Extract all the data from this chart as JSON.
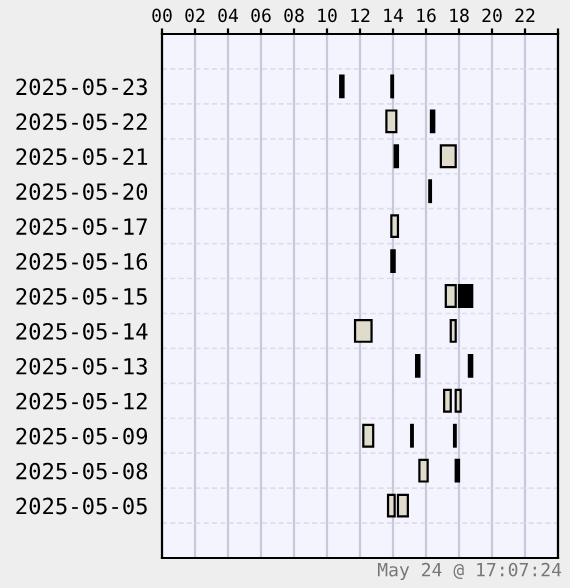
{
  "chart_data": {
    "type": "bar",
    "orientation": "horizontal",
    "categories": [
      null,
      "2025-05-23",
      "2025-05-22",
      "2025-05-21",
      "2025-05-20",
      "2025-05-17",
      "2025-05-16",
      "2025-05-15",
      "2025-05-14",
      "2025-05-13",
      "2025-05-12",
      "2025-05-09",
      "2025-05-08",
      "2025-05-05",
      null
    ],
    "series": [
      {
        "base": [
          null,
          10.8,
          13.6,
          14.1,
          16.2,
          13.9,
          13.9,
          17.2,
          11.7,
          15.4,
          17.1,
          12.2,
          15.6,
          13.7,
          null
        ],
        "values": [
          null,
          0.2,
          0.6,
          0.2,
          0.1,
          0.4,
          0.2,
          0.6,
          1.0,
          0.2,
          0.4,
          0.6,
          0.5,
          0.4,
          null
        ],
        "colors": [
          null,
          "#000000",
          "#e0dccc",
          "#000000",
          "#000000",
          "#e0dccc",
          "#000000",
          "#e0dccc",
          "#e0dccc",
          "#000000",
          "#e0dccc",
          "#e0dccc",
          "#e0dccc",
          "#e0dccc",
          null
        ]
      },
      {
        "base": [
          null,
          13.9,
          16.3,
          16.9,
          null,
          null,
          null,
          18.0,
          17.5,
          18.6,
          17.8,
          15.1,
          17.8,
          14.3,
          null
        ],
        "values": [
          null,
          0.1,
          0.2,
          0.9,
          null,
          null,
          null,
          0.2,
          0.3,
          0.2,
          0.3,
          0.1,
          0.2,
          0.6,
          null
        ],
        "colors": [
          null,
          "#000000",
          "#000000",
          "#e0dccc",
          null,
          null,
          null,
          "#000000",
          "#e0dccc",
          "#000000",
          "#e0dccc",
          "#000000",
          "#000000",
          "#e0dccc",
          null
        ]
      },
      {
        "base": [
          null,
          null,
          null,
          null,
          null,
          null,
          null,
          18.3,
          null,
          null,
          null,
          17.7,
          null,
          null,
          null
        ],
        "values": [
          null,
          null,
          null,
          null,
          null,
          null,
          null,
          0.2,
          null,
          null,
          null,
          0.1,
          null,
          null,
          null
        ],
        "colors": [
          null,
          null,
          null,
          null,
          null,
          null,
          null,
          "#000000",
          null,
          null,
          null,
          "#000000",
          null,
          null,
          null
        ]
      },
      {
        "base": [
          null,
          null,
          null,
          null,
          null,
          null,
          null,
          18.6,
          null,
          null,
          null,
          null,
          null,
          null,
          null
        ],
        "values": [
          null,
          null,
          null,
          null,
          null,
          null,
          null,
          0.2,
          null,
          null,
          null,
          null,
          null,
          null,
          null
        ],
        "colors": [
          null,
          null,
          null,
          null,
          null,
          null,
          null,
          "#000000",
          null,
          null,
          null,
          null,
          null,
          null,
          null
        ]
      }
    ],
    "xlim": [
      0,
      24
    ],
    "xticks": [
      {
        "value": 0,
        "label": "00"
      },
      {
        "value": 2,
        "label": "02"
      },
      {
        "value": 4,
        "label": "04"
      },
      {
        "value": 6,
        "label": "06"
      },
      {
        "value": 8,
        "label": "08"
      },
      {
        "value": 10,
        "label": "10"
      },
      {
        "value": 12,
        "label": "12"
      },
      {
        "value": 14,
        "label": "14"
      },
      {
        "value": 16,
        "label": "16"
      },
      {
        "value": 18,
        "label": "18"
      },
      {
        "value": 20,
        "label": "20"
      },
      {
        "value": 22,
        "label": "22"
      },
      {
        "value": 24,
        "label": null
      }
    ],
    "grid": "x",
    "annotations": [
      "May 24 @ 17:07:24"
    ]
  }
}
